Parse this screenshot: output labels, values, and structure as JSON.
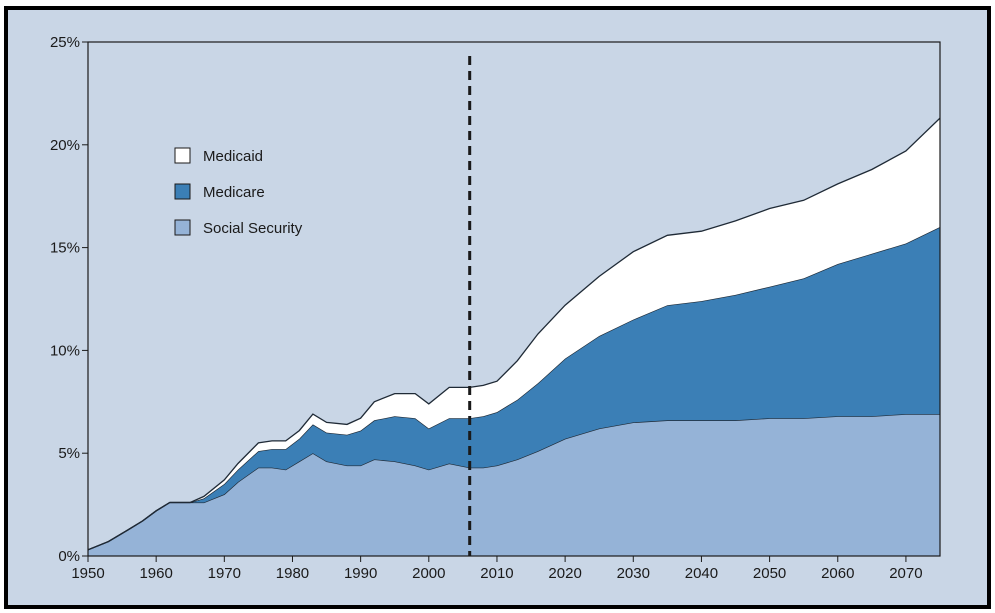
{
  "chart_data": {
    "type": "area",
    "title": "",
    "xlabel": "",
    "ylabel": "",
    "xlim": [
      1950,
      2075
    ],
    "ylim": [
      0,
      25
    ],
    "x_ticks": [
      "1950",
      "1960",
      "1970",
      "1980",
      "1990",
      "2000",
      "2010",
      "2020",
      "2030",
      "2040",
      "2050",
      "2060",
      "2070"
    ],
    "y_ticks": [
      "0%",
      "5%",
      "10%",
      "15%",
      "20%",
      "25%"
    ],
    "projection_start_year": 2006,
    "stacked": true,
    "legend_position": "top-left",
    "series": [
      {
        "name": "Social Security",
        "color": "#95b3d7",
        "x": [
          1950,
          1953,
          1956,
          1958,
          1960,
          1962,
          1963,
          1965,
          1967,
          1970,
          1972,
          1975,
          1977,
          1979,
          1981,
          1983,
          1985,
          1988,
          1990,
          1992,
          1995,
          1998,
          2000,
          2003,
          2006,
          2008,
          2010,
          2013,
          2016,
          2020,
          2025,
          2030,
          2035,
          2040,
          2045,
          2050,
          2055,
          2060,
          2065,
          2070,
          2075
        ],
        "values": [
          0.3,
          0.7,
          1.3,
          1.7,
          2.2,
          2.6,
          2.6,
          2.6,
          2.6,
          3.0,
          3.6,
          4.3,
          4.3,
          4.2,
          4.6,
          5.0,
          4.6,
          4.4,
          4.4,
          4.7,
          4.6,
          4.4,
          4.2,
          4.5,
          4.3,
          4.3,
          4.4,
          4.7,
          5.1,
          5.7,
          6.2,
          6.5,
          6.6,
          6.6,
          6.6,
          6.7,
          6.7,
          6.8,
          6.8,
          6.9,
          6.9
        ]
      },
      {
        "name": "Medicare",
        "color": "#3b7fb6",
        "x": [
          1965,
          1967,
          1970,
          1972,
          1975,
          1977,
          1979,
          1981,
          1983,
          1985,
          1988,
          1990,
          1992,
          1995,
          1998,
          2000,
          2003,
          2006,
          2008,
          2010,
          2013,
          2016,
          2020,
          2025,
          2030,
          2035,
          2040,
          2045,
          2050,
          2055,
          2060,
          2065,
          2070,
          2075
        ],
        "values": [
          0.0,
          0.2,
          0.5,
          0.6,
          0.8,
          0.9,
          1.0,
          1.1,
          1.4,
          1.4,
          1.5,
          1.7,
          1.9,
          2.2,
          2.3,
          2.0,
          2.2,
          2.4,
          2.5,
          2.6,
          2.9,
          3.3,
          3.9,
          4.5,
          5.0,
          5.6,
          5.8,
          6.1,
          6.4,
          6.8,
          7.4,
          7.9,
          8.3,
          9.1
        ]
      },
      {
        "name": "Medicaid",
        "color": "#ffffff",
        "x": [
          1965,
          1967,
          1970,
          1972,
          1975,
          1977,
          1979,
          1981,
          1983,
          1985,
          1988,
          1990,
          1992,
          1995,
          1998,
          2000,
          2003,
          2006,
          2008,
          2010,
          2013,
          2016,
          2020,
          2025,
          2030,
          2035,
          2040,
          2045,
          2050,
          2055,
          2060,
          2065,
          2070,
          2075
        ],
        "values": [
          0.0,
          0.1,
          0.2,
          0.3,
          0.4,
          0.4,
          0.4,
          0.4,
          0.5,
          0.5,
          0.5,
          0.6,
          0.9,
          1.1,
          1.2,
          1.2,
          1.5,
          1.5,
          1.5,
          1.5,
          1.9,
          2.4,
          2.6,
          2.9,
          3.3,
          3.4,
          3.4,
          3.6,
          3.8,
          3.8,
          3.9,
          4.1,
          4.5,
          5.3
        ]
      }
    ]
  }
}
